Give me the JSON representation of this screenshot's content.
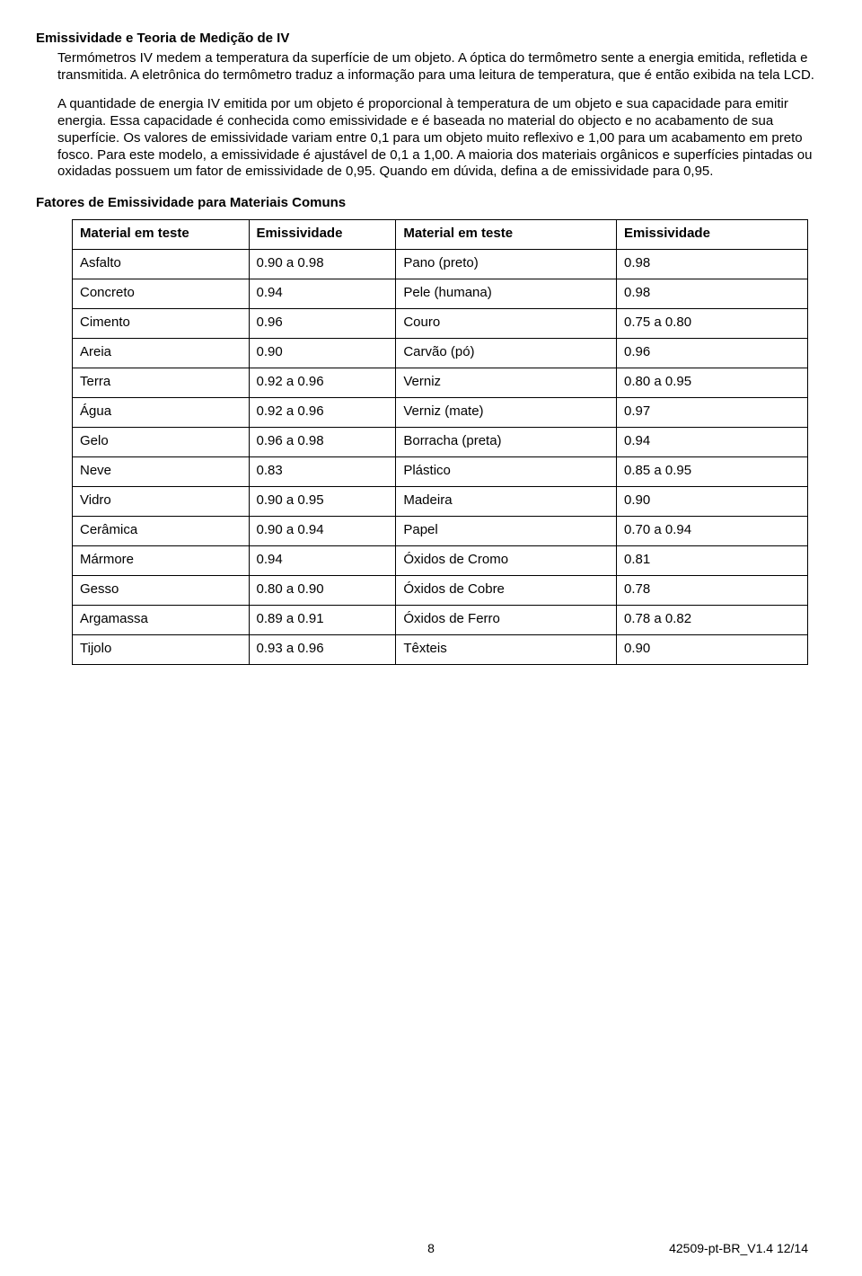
{
  "heading": "Emissividade e Teoria de Medição de IV",
  "para1": "Termómetros IV medem a temperatura da superfície de um objeto. A óptica do termômetro sente a energia emitida, refletida e transmitida. A eletrônica do termômetro traduz a informação para uma leitura de temperatura, que é então exibida na tela LCD.",
  "para2": "A quantidade de energia IV emitida por um objeto é proporcional à temperatura de um objeto e sua capacidade para emitir energia. Essa capacidade é conhecida como emissividade e é baseada no material do objecto e no acabamento de sua superfície. Os valores de emissividade variam entre 0,1 para um objeto muito reflexivo e 1,00 para um acabamento em preto fosco. Para este modelo, a emissividade é ajustável de 0,1 a 1,00. A maioria dos materiais orgânicos e superfícies pintadas ou oxidadas possuem um fator de emissividade de 0,95. Quando em dúvida, defina a de emissividade para 0,95.",
  "subtitle": "Fatores de Emissividade para Materiais Comuns",
  "table": {
    "headers": [
      "Material em teste",
      "Emissividade",
      "Material em teste",
      "Emissividade"
    ],
    "rows": [
      [
        "Asfalto",
        "0.90 a 0.98",
        "Pano (preto)",
        "0.98"
      ],
      [
        "Concreto",
        "0.94",
        "Pele (humana)",
        "0.98"
      ],
      [
        "Cimento",
        "0.96",
        "Couro",
        "0.75 a 0.80"
      ],
      [
        "Areia",
        "0.90",
        "Carvão (pó)",
        "0.96"
      ],
      [
        "Terra",
        "0.92 a 0.96",
        "Verniz",
        "0.80 a 0.95"
      ],
      [
        "Água",
        "0.92 a 0.96",
        "Verniz (mate)",
        "0.97"
      ],
      [
        "Gelo",
        "0.96 a 0.98",
        "Borracha (preta)",
        "0.94"
      ],
      [
        "Neve",
        "0.83",
        "Plástico",
        "0.85 a 0.95"
      ],
      [
        "Vidro",
        "0.90 a 0.95",
        "Madeira",
        "0.90"
      ],
      [
        "Cerâmica",
        "0.90 a 0.94",
        "Papel",
        "0.70 a 0.94"
      ],
      [
        "Mármore",
        "0.94",
        "Óxidos de Cromo",
        "0.81"
      ],
      [
        "Gesso",
        "0.80 a 0.90",
        "Óxidos de Cobre",
        "0.78"
      ],
      [
        "Argamassa",
        "0.89 a 0.91",
        "Óxidos de Ferro",
        "0.78 a 0.82"
      ],
      [
        "Tijolo",
        "0.93 a 0.96",
        "Têxteis",
        "0.90"
      ]
    ]
  },
  "footer": {
    "page": "8",
    "version": "42509-pt-BR_V1.4   12/14"
  }
}
